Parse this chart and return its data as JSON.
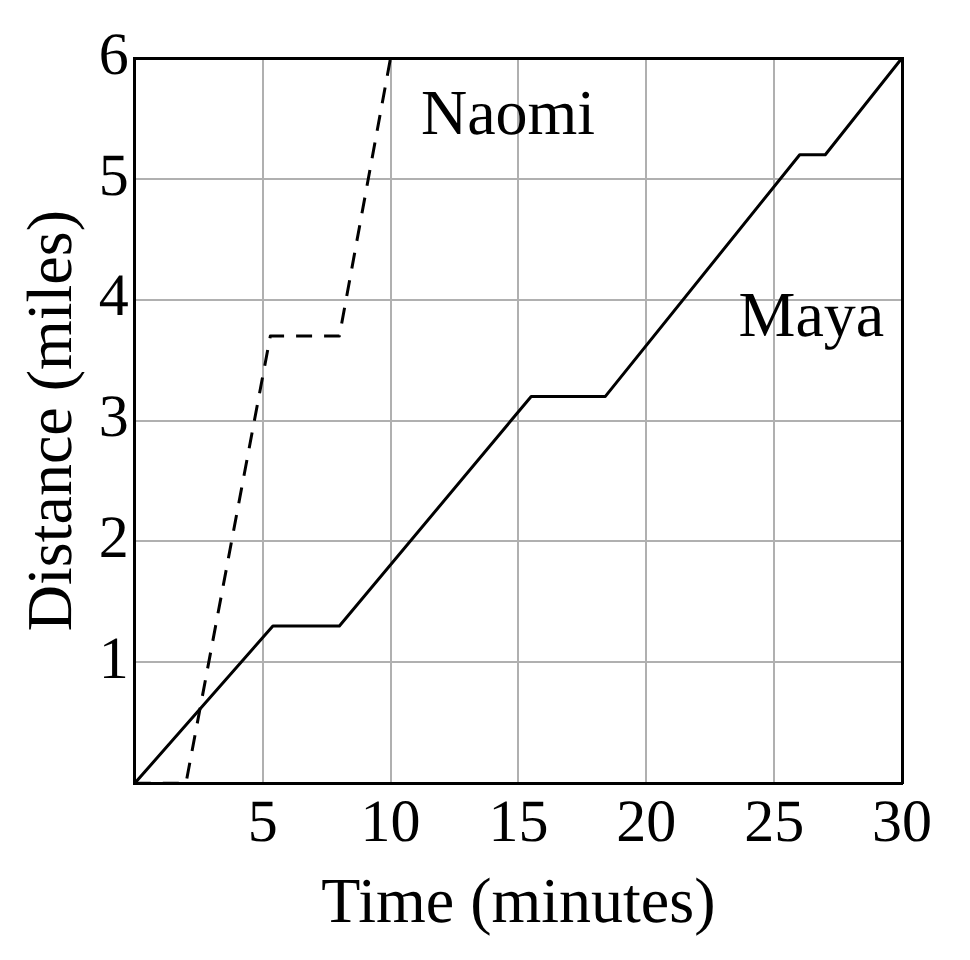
{
  "chart_data": {
    "type": "line",
    "xlabel": "Time (minutes)",
    "ylabel": "Distance (miles)",
    "xlim": [
      0,
      30
    ],
    "xticks": [
      {
        "value": 0,
        "label": null
      },
      5,
      10,
      15,
      20,
      25,
      30
    ],
    "ylim": [
      0,
      6
    ],
    "yticks": [
      {
        "value": 0,
        "label": null
      },
      1,
      2,
      3,
      4,
      5,
      6
    ],
    "grid": true,
    "legend": false,
    "marker": "none",
    "series": [
      {
        "name": "Naomi",
        "color": "#000000",
        "line_style": "dashed",
        "x": [
          0,
          2,
          5.3,
          8,
          10
        ],
        "values": [
          0,
          0,
          3.7,
          3.7,
          6
        ]
      },
      {
        "name": "Maya",
        "color": "#000000",
        "line_style": "solid",
        "x": [
          0,
          5.4,
          8,
          15.5,
          18.4,
          26,
          27,
          30
        ],
        "values": [
          0,
          1.3,
          1.3,
          3.2,
          3.2,
          5.2,
          5.2,
          6
        ]
      }
    ]
  }
}
